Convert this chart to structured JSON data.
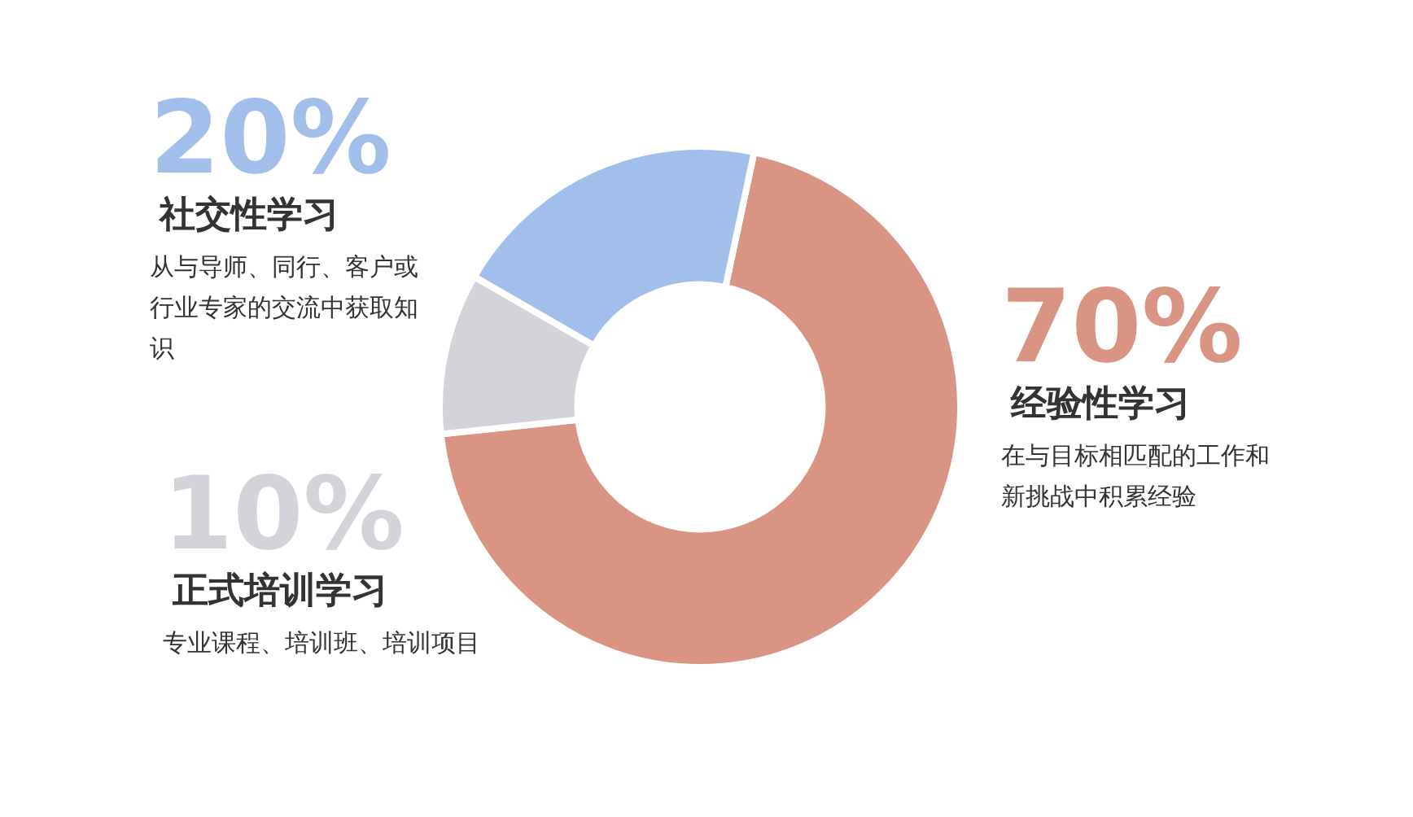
{
  "chart_data": {
    "type": "donut",
    "categories": [
      "经验性学习",
      "正式培训学习",
      "社交性学习"
    ],
    "values": [
      70,
      10,
      20
    ],
    "colors": [
      "#d99484",
      "#d3d3d9",
      "#a2bfeb"
    ],
    "value_labels": [
      "70%",
      "10%",
      "20%"
    ],
    "annotations": [
      "在与目标相匹配的工作和新挑战中积累经验",
      "专业课程、培训班、培训项目",
      "从与导师、同行、客户或行业专家的交流中获取知识"
    ]
  }
}
